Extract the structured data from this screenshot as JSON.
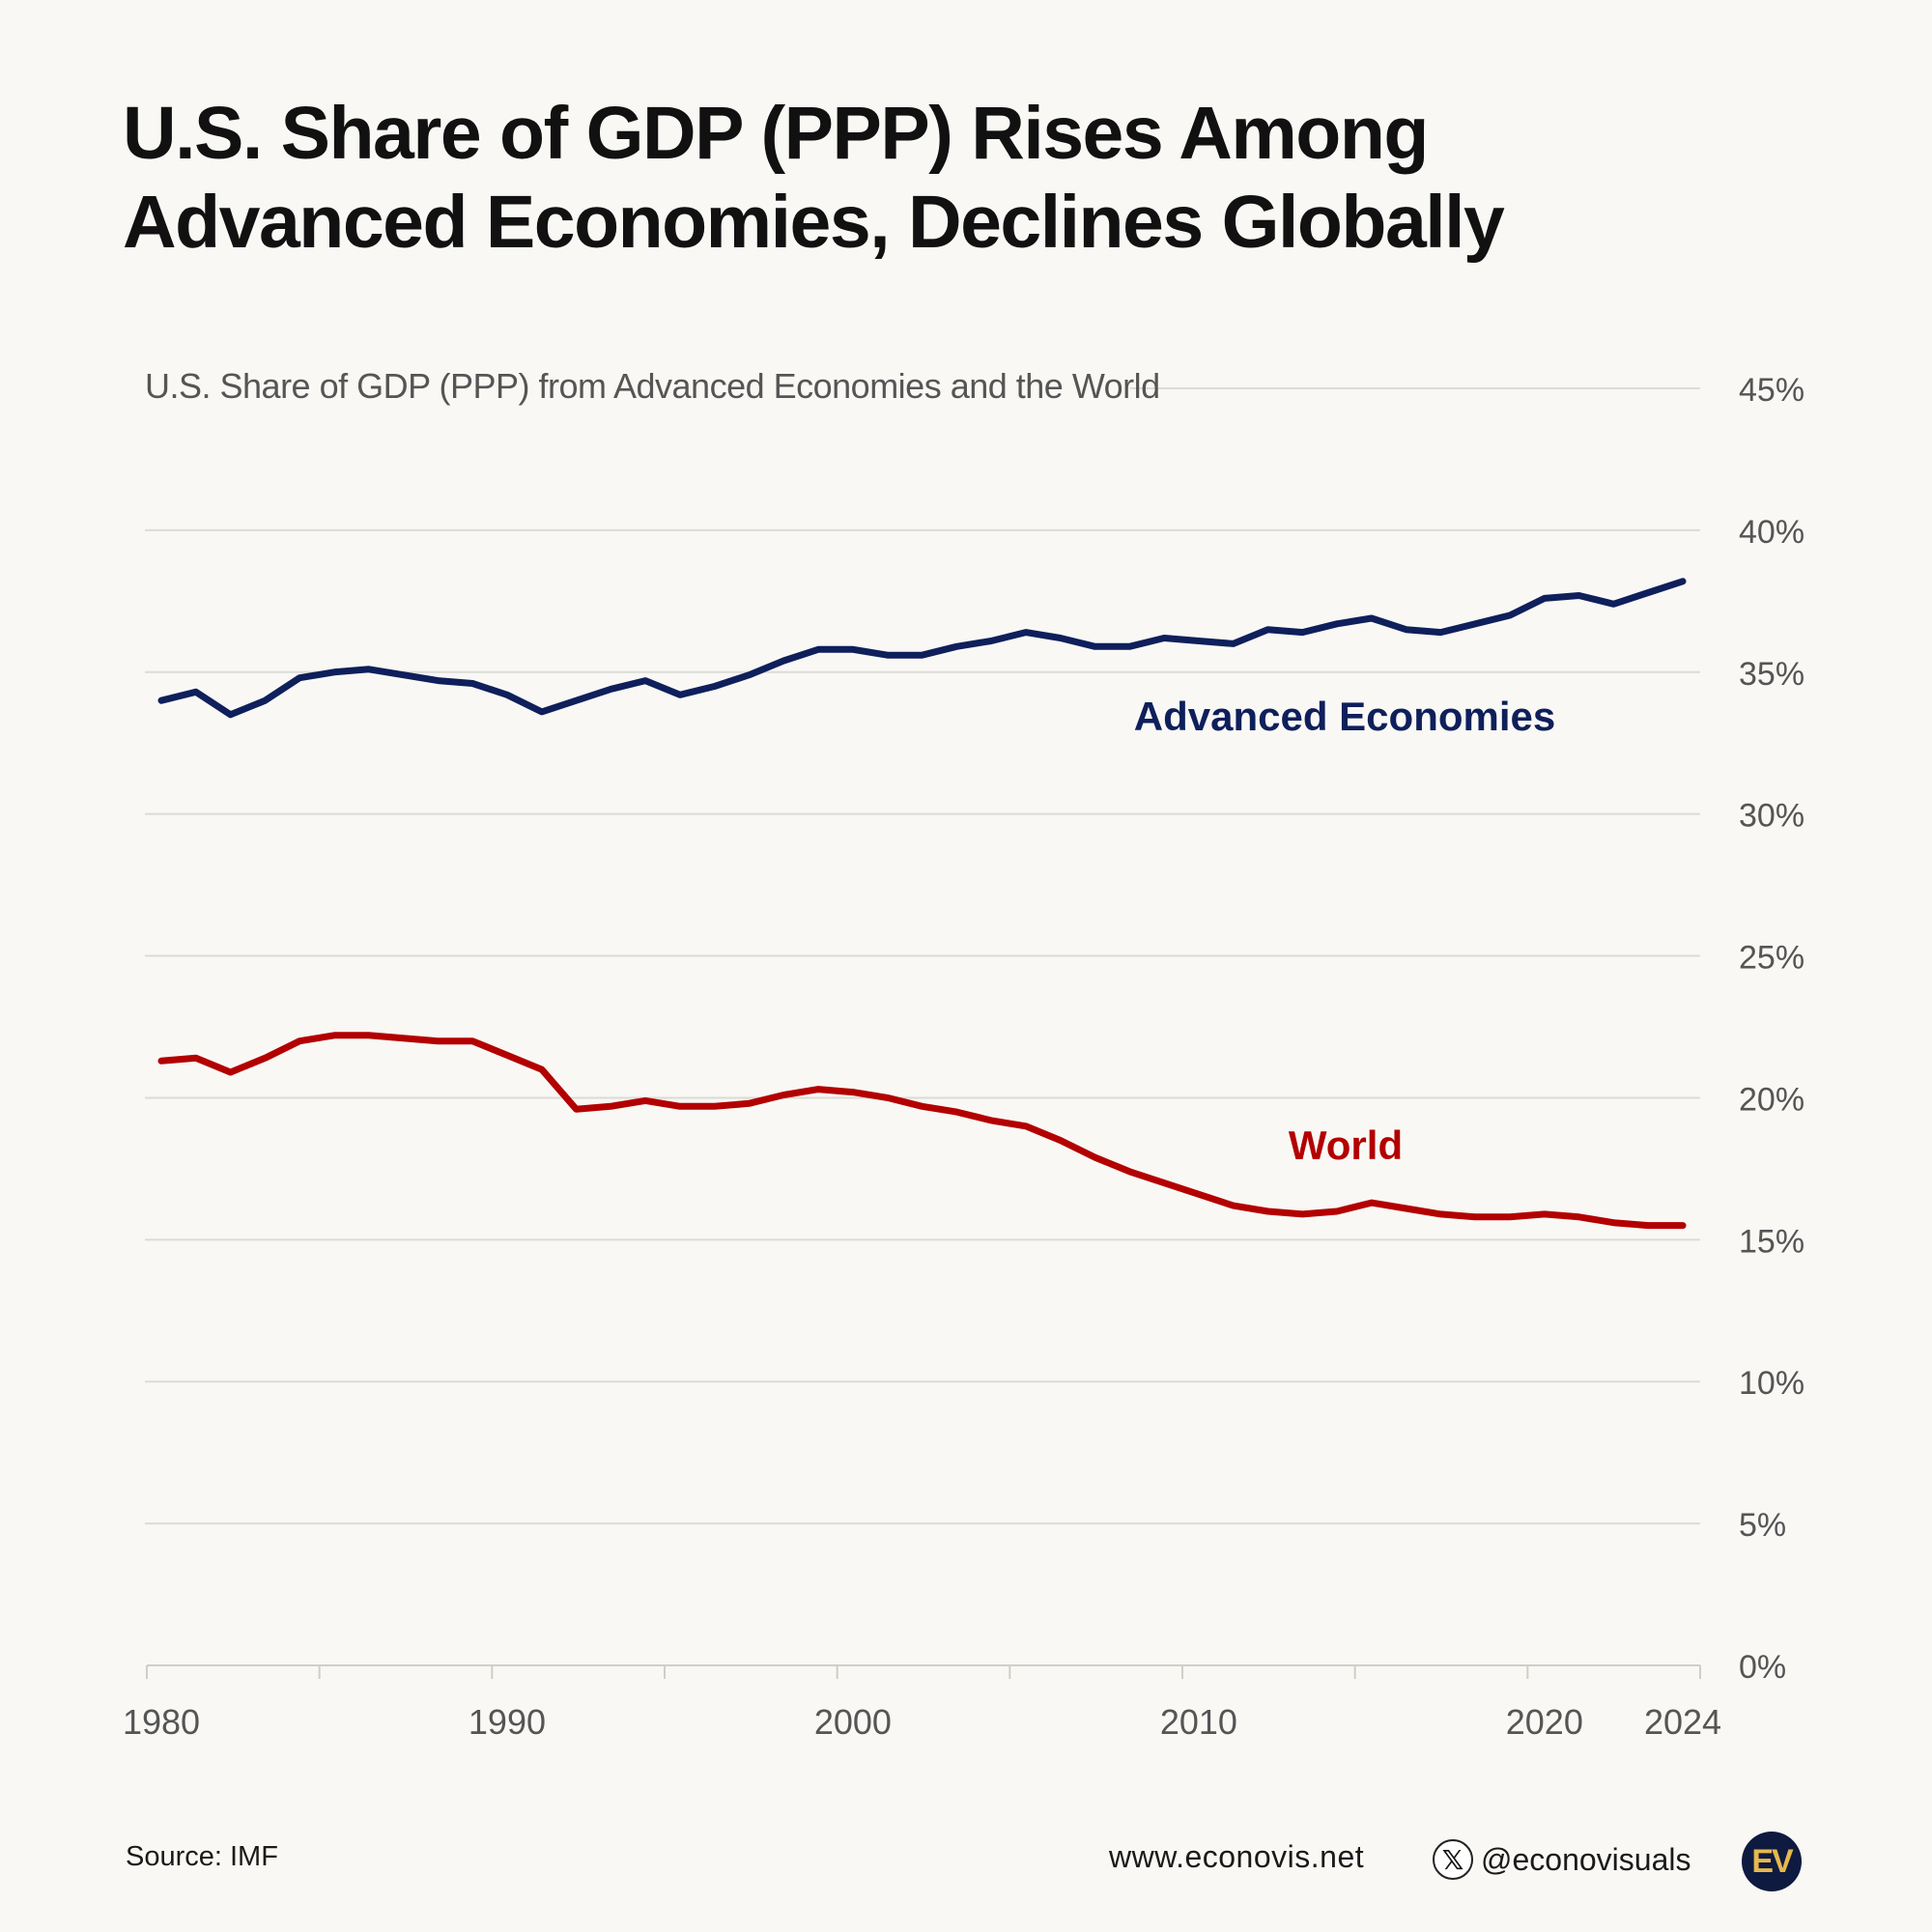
{
  "title": {
    "line1": "U.S. Share of GDP (PPP) Rises Among",
    "line2": "Advanced Economies, Declines Globally"
  },
  "footer": {
    "source": "Source: IMF",
    "website": "www.econovis.net",
    "handle": "@econovisuals",
    "logo_text": "EV"
  },
  "colors": {
    "background": "#f9f8f5",
    "advanced": "#0e1f5b",
    "world": "#b30000",
    "grid": "#dcdcd6",
    "axis_text": "#555555"
  },
  "chart_data": {
    "type": "line",
    "title": "U.S. Share of GDP (PPP) from Advanced Economies and the World",
    "xlabel": "",
    "ylabel": "",
    "ylim": [
      0,
      45
    ],
    "xlim": [
      1980,
      2024
    ],
    "yticks": [
      0,
      5,
      10,
      15,
      20,
      25,
      30,
      35,
      40,
      45
    ],
    "ytick_labels": [
      "0%",
      "5%",
      "10%",
      "15%",
      "20%",
      "25%",
      "30%",
      "35%",
      "40%",
      "45%"
    ],
    "xtick_labels": [
      "1980",
      "1990",
      "2000",
      "2010",
      "2020",
      "2024"
    ],
    "xtick_values": [
      1980,
      1990,
      2000,
      2010,
      2020,
      2024
    ],
    "x": [
      1980,
      1981,
      1982,
      1983,
      1984,
      1985,
      1986,
      1987,
      1988,
      1989,
      1990,
      1991,
      1992,
      1993,
      1994,
      1995,
      1996,
      1997,
      1998,
      1999,
      2000,
      2001,
      2002,
      2003,
      2004,
      2005,
      2006,
      2007,
      2008,
      2009,
      2010,
      2011,
      2012,
      2013,
      2014,
      2015,
      2016,
      2017,
      2018,
      2019,
      2020,
      2021,
      2022,
      2023,
      2024
    ],
    "series": [
      {
        "name": "Advanced Economies",
        "values": [
          34.0,
          34.3,
          33.5,
          34.0,
          34.8,
          35.0,
          35.1,
          34.9,
          34.7,
          34.6,
          34.2,
          33.6,
          34.0,
          34.4,
          34.7,
          34.2,
          34.5,
          34.9,
          35.4,
          35.8,
          35.8,
          35.6,
          35.6,
          35.9,
          36.1,
          36.4,
          36.2,
          35.9,
          35.9,
          36.2,
          36.1,
          36.0,
          36.5,
          36.4,
          36.7,
          36.9,
          36.5,
          36.4,
          36.7,
          37.0,
          37.6,
          37.7,
          37.4,
          37.8,
          38.2
        ]
      },
      {
        "name": "World",
        "values": [
          21.3,
          21.4,
          20.9,
          21.4,
          22.0,
          22.2,
          22.2,
          22.1,
          22.0,
          22.0,
          21.5,
          21.0,
          19.6,
          19.7,
          19.9,
          19.7,
          19.7,
          19.8,
          20.1,
          20.3,
          20.2,
          20.0,
          19.7,
          19.5,
          19.2,
          19.0,
          18.5,
          17.9,
          17.4,
          17.0,
          16.6,
          16.2,
          16.0,
          15.9,
          16.0,
          16.3,
          16.1,
          15.9,
          15.8,
          15.8,
          15.9,
          15.8,
          15.6,
          15.5,
          15.5
        ]
      }
    ],
    "series_labels": {
      "Advanced Economies": "Advanced Economies",
      "World": "World"
    }
  }
}
